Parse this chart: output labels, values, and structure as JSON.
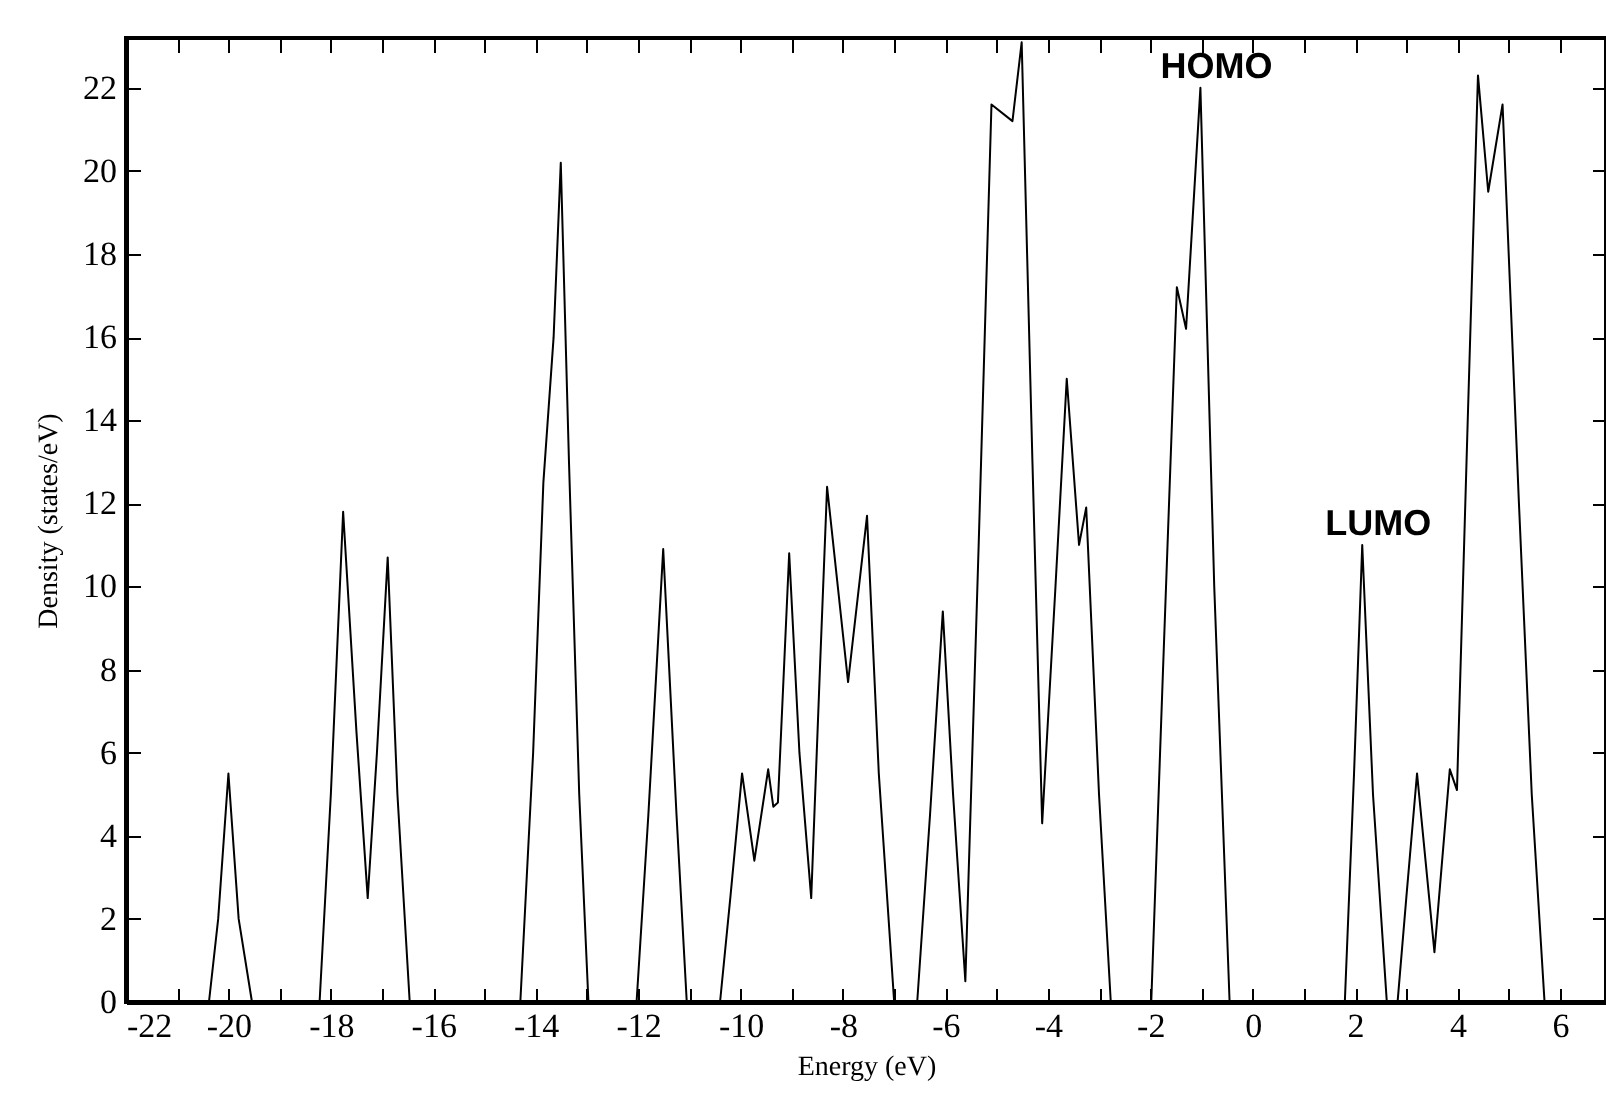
{
  "chart_data": {
    "type": "line",
    "xlabel": "Energy (eV)",
    "ylabel": "Density (states/eV)",
    "xlim": [
      -22,
      6.9
    ],
    "ylim": [
      0,
      23.2
    ],
    "xticks": [
      -22,
      {
        "value": -21,
        "label": null
      },
      -20,
      {
        "value": -19,
        "label": null
      },
      -18,
      {
        "value": -17,
        "label": null
      },
      -16,
      {
        "value": -15,
        "label": null
      },
      -14,
      {
        "value": -13,
        "label": null
      },
      -12,
      {
        "value": -11,
        "label": null
      },
      -10,
      {
        "value": -9,
        "label": null
      },
      -8,
      {
        "value": -7,
        "label": null
      },
      -6,
      {
        "value": -5,
        "label": null
      },
      -4,
      {
        "value": -3,
        "label": null
      },
      -2,
      {
        "value": -1,
        "label": null
      },
      0,
      {
        "value": 1,
        "label": null
      },
      2,
      {
        "value": 3,
        "label": null
      },
      4,
      {
        "value": 5,
        "label": null
      },
      6
    ],
    "yticks": [
      0,
      2,
      4,
      6,
      8,
      10,
      12,
      14,
      16,
      18,
      20,
      22
    ],
    "grid": false,
    "marker": "none",
    "line_style": "solid",
    "annotations": [
      {
        "text": "HOMO",
        "x": -1.02,
        "y": 22.0
      },
      {
        "text": "LUMO",
        "x": 2.14,
        "y": 11.0
      }
    ],
    "series": [
      {
        "color": "#000000",
        "x": [
          -22,
          -20.38,
          -20.2,
          -20,
          -19.8,
          -19.54,
          -18.22,
          -18.0,
          -17.76,
          -17.5,
          -17.28,
          -17.1,
          -16.89,
          -16.7,
          -16.46,
          -14.3,
          -14.05,
          -13.85,
          -13.65,
          -13.51,
          -13.35,
          -13.15,
          -12.97,
          -12.03,
          -11.8,
          -11.51,
          -11.25,
          -11.05,
          -10.4,
          -10.2,
          -9.97,
          -9.73,
          -9.46,
          -9.36,
          -9.27,
          -9.05,
          -8.85,
          -8.62,
          -8.45,
          -8.31,
          -7.9,
          -7.53,
          -7.3,
          -7.0,
          -6.55,
          -6.3,
          -6.05,
          -5.85,
          -5.61,
          -5.35,
          -5.1,
          -4.69,
          -4.51,
          -4.3,
          -4.11,
          -3.85,
          -3.63,
          -3.39,
          -3.25,
          -3.0,
          -2.77,
          -1.98,
          -1.75,
          -1.48,
          -1.3,
          -1.02,
          -0.75,
          -0.45,
          1.8,
          1.98,
          2.14,
          2.35,
          2.62,
          2.83,
          3.0,
          3.21,
          3.55,
          3.85,
          3.99,
          4.2,
          4.4,
          4.6,
          4.88,
          5.2,
          5.45,
          5.7,
          6.9
        ],
        "values": [
          0,
          0,
          2.0,
          5.5,
          2.0,
          0,
          0,
          5.0,
          11.8,
          6.5,
          2.5,
          6.0,
          10.7,
          5.0,
          0,
          0,
          6.0,
          12.5,
          16,
          20.2,
          13,
          5,
          0,
          0,
          4.5,
          10.9,
          4.5,
          0,
          0,
          2.5,
          5.5,
          3.4,
          5.6,
          4.7,
          4.8,
          10.8,
          6,
          2.5,
          8,
          12.4,
          7.7,
          11.7,
          5.5,
          0,
          0,
          4.5,
          9.4,
          5,
          0.5,
          11,
          21.6,
          21.2,
          23.1,
          13,
          4.3,
          10,
          15.0,
          11.0,
          11.9,
          5,
          0,
          0,
          8,
          17.2,
          16.2,
          22.0,
          10,
          0,
          0,
          5.5,
          11.0,
          5,
          0,
          0,
          2.5,
          5.5,
          1.2,
          5.6,
          5.1,
          14,
          22.3,
          19.5,
          21.6,
          12,
          5,
          0,
          0
        ]
      }
    ]
  }
}
